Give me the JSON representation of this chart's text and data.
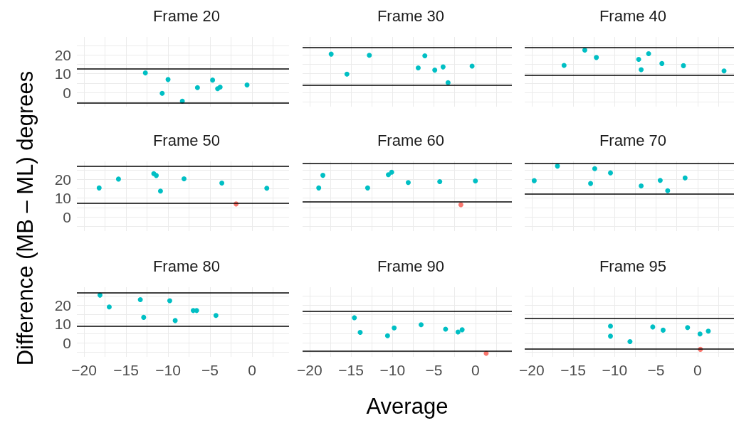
{
  "chart_data": [
    {
      "type": "scatter",
      "title": "Frame 20",
      "xlim": [
        -20.85,
        4.4
      ],
      "ylim": [
        -7.5,
        29.5
      ],
      "xticks": [
        -20,
        {
          "value": -17.5,
          "label": null
        },
        -15,
        {
          "value": -12.5,
          "label": null
        },
        -10,
        {
          "value": -7.5,
          "label": null
        },
        -5,
        {
          "value": -2.5,
          "label": null
        },
        0,
        {
          "value": 2.5,
          "label": null
        }
      ],
      "yticks": [
        {
          "value": -5,
          "label": null
        },
        0,
        {
          "value": 5,
          "label": null
        },
        10,
        {
          "value": 15,
          "label": null
        },
        20,
        {
          "value": 25,
          "label": null
        }
      ],
      "grid": true,
      "marker": "circle",
      "tick_labels": "y",
      "series": [
        {
          "color": "#00bfc4",
          "x": [
            -12.7,
            -10.0,
            -10.7,
            -8.3,
            -6.5,
            -4.7,
            -4.1,
            -3.8,
            -0.6
          ],
          "values": [
            10.4,
            6.9,
            -0.4,
            -4.6,
            2.6,
            6.6,
            2.0,
            2.9,
            4.0
          ]
        }
      ],
      "ref_lines": [
        {
          "axis": "y",
          "value": 12.75,
          "color": "#000000"
        },
        {
          "axis": "y",
          "value": -5.6,
          "color": "#000000"
        }
      ]
    },
    {
      "type": "scatter",
      "title": "Frame 30",
      "xlim": [
        -20.85,
        4.4
      ],
      "ylim": [
        -7.5,
        29.5
      ],
      "xticks": [
        -20,
        {
          "value": -17.5,
          "label": null
        },
        -15,
        {
          "value": -12.5,
          "label": null
        },
        -10,
        {
          "value": -7.5,
          "label": null
        },
        -5,
        {
          "value": -2.5,
          "label": null
        },
        0,
        {
          "value": 2.5,
          "label": null
        }
      ],
      "yticks": [
        {
          "value": -5,
          "label": null
        },
        0,
        {
          "value": 5,
          "label": null
        },
        10,
        {
          "value": 15,
          "label": null
        },
        20,
        {
          "value": 25,
          "label": null
        }
      ],
      "grid": true,
      "marker": "circle",
      "tick_labels": false,
      "series": [
        {
          "color": "#00bfc4",
          "x": [
            -17.4,
            -15.5,
            -12.8,
            -6.9,
            -6.1,
            -4.9,
            -3.9,
            -3.3,
            -0.4
          ],
          "values": [
            20.4,
            9.75,
            19.75,
            13.1,
            19.5,
            11.9,
            13.6,
            5.25,
            14.0
          ]
        }
      ],
      "ref_lines": [
        {
          "axis": "y",
          "value": 24.0,
          "color": "#000000"
        },
        {
          "axis": "y",
          "value": 3.9,
          "color": "#000000"
        }
      ]
    },
    {
      "type": "scatter",
      "title": "Frame 40",
      "xlim": [
        -20.85,
        4.4
      ],
      "ylim": [
        -7.5,
        29.5
      ],
      "xticks": [
        -20,
        {
          "value": -17.5,
          "label": null
        },
        -15,
        {
          "value": -12.5,
          "label": null
        },
        -10,
        {
          "value": -7.5,
          "label": null
        },
        -5,
        {
          "value": -2.5,
          "label": null
        },
        0,
        {
          "value": 2.5,
          "label": null
        }
      ],
      "yticks": [
        {
          "value": -5,
          "label": null
        },
        0,
        {
          "value": 5,
          "label": null
        },
        10,
        {
          "value": 15,
          "label": null
        },
        20,
        {
          "value": 25,
          "label": null
        }
      ],
      "grid": true,
      "marker": "circle",
      "tick_labels": false,
      "series": [
        {
          "color": "#00bfc4",
          "x": [
            -16.1,
            -13.6,
            -12.2,
            -7.1,
            -5.9,
            -6.8,
            -4.3,
            -1.7,
            3.2
          ],
          "values": [
            14.4,
            22.5,
            18.6,
            17.6,
            20.6,
            12.1,
            15.4,
            14.25,
            11.5
          ]
        }
      ],
      "ref_lines": [
        {
          "axis": "y",
          "value": 23.9,
          "color": "#000000"
        },
        {
          "axis": "y",
          "value": 9.25,
          "color": "#000000"
        }
      ]
    },
    {
      "type": "scatter",
      "title": "Frame 50",
      "ylabel": "Difference (MB – ML) degrees",
      "xlim": [
        -20.85,
        4.4
      ],
      "ylim": [
        -7.5,
        29.5
      ],
      "xticks": [
        -20,
        {
          "value": -17.5,
          "label": null
        },
        -15,
        {
          "value": -12.5,
          "label": null
        },
        -10,
        {
          "value": -7.5,
          "label": null
        },
        -5,
        {
          "value": -2.5,
          "label": null
        },
        0,
        {
          "value": 2.5,
          "label": null
        }
      ],
      "yticks": [
        {
          "value": -5,
          "label": null
        },
        0,
        {
          "value": 5,
          "label": null
        },
        10,
        {
          "value": 15,
          "label": null
        },
        20,
        {
          "value": 25,
          "label": null
        }
      ],
      "grid": true,
      "marker": "circle",
      "tick_labels": "y",
      "series": [
        {
          "color": "#00bfc4",
          "x": [
            -18.2,
            -15.9,
            -11.7,
            -11.4,
            -10.9,
            -8.1,
            -3.6,
            1.75
          ],
          "values": [
            15.4,
            20.1,
            23.0,
            22.0,
            13.75,
            20.25,
            18.0,
            15.25
          ]
        },
        {
          "color": "#f8766d",
          "x": [
            -1.9
          ],
          "values": [
            6.9
          ]
        }
      ],
      "ref_lines": [
        {
          "axis": "y",
          "value": 27.1,
          "color": "#000000"
        },
        {
          "axis": "y",
          "value": 7.4,
          "color": "#000000"
        }
      ]
    },
    {
      "type": "scatter",
      "title": "Frame 60",
      "xlim": [
        -20.85,
        4.4
      ],
      "ylim": [
        -7.5,
        29.5
      ],
      "xticks": [
        -20,
        {
          "value": -17.5,
          "label": null
        },
        -15,
        {
          "value": -12.5,
          "label": null
        },
        -10,
        {
          "value": -7.5,
          "label": null
        },
        -5,
        {
          "value": -2.5,
          "label": null
        },
        0,
        {
          "value": 2.5,
          "label": null
        }
      ],
      "yticks": [
        {
          "value": -5,
          "label": null
        },
        0,
        {
          "value": 5,
          "label": null
        },
        10,
        {
          "value": 15,
          "label": null
        },
        20,
        {
          "value": 25,
          "label": null
        }
      ],
      "grid": true,
      "marker": "circle",
      "tick_labels": false,
      "series": [
        {
          "color": "#00bfc4",
          "x": [
            -18.9,
            -18.4,
            -13.0,
            -10.5,
            -10.1,
            -8.1,
            -4.3,
            0.0
          ],
          "values": [
            15.4,
            22.1,
            15.4,
            22.4,
            23.75,
            18.25,
            18.75,
            19.1
          ]
        },
        {
          "color": "#f8766d",
          "x": [
            -1.75
          ],
          "values": [
            6.5
          ]
        }
      ],
      "ref_lines": [
        {
          "axis": "y",
          "value": 28.6,
          "color": "#000000"
        },
        {
          "axis": "y",
          "value": 7.9,
          "color": "#000000"
        }
      ]
    },
    {
      "type": "scatter",
      "title": "Frame 70",
      "xlim": [
        -20.85,
        4.4
      ],
      "ylim": [
        -7.5,
        29.5
      ],
      "xticks": [
        -20,
        {
          "value": -17.5,
          "label": null
        },
        -15,
        {
          "value": -12.5,
          "label": null
        },
        -10,
        {
          "value": -7.5,
          "label": null
        },
        -5,
        {
          "value": -2.5,
          "label": null
        },
        0,
        {
          "value": 2.5,
          "label": null
        }
      ],
      "yticks": [
        {
          "value": -5,
          "label": null
        },
        0,
        {
          "value": 5,
          "label": null
        },
        10,
        {
          "value": 15,
          "label": null
        },
        20,
        {
          "value": 25,
          "label": null
        }
      ],
      "grid": true,
      "marker": "circle",
      "tick_labels": false,
      "series": [
        {
          "color": "#00bfc4",
          "x": [
            -19.7,
            -16.9,
            -12.4,
            -12.9,
            -10.5,
            -6.8,
            -4.5,
            -3.6,
            -1.5
          ],
          "values": [
            19.25,
            27.0,
            25.6,
            17.75,
            23.4,
            16.5,
            19.4,
            13.9,
            20.75
          ]
        }
      ],
      "ref_lines": [
        {
          "axis": "y",
          "value": 28.5,
          "color": "#000000"
        },
        {
          "axis": "y",
          "value": 12.1,
          "color": "#000000"
        }
      ]
    },
    {
      "type": "scatter",
      "title": "Frame 80",
      "xlim": [
        -20.85,
        4.4
      ],
      "ylim": [
        -7.5,
        29.5
      ],
      "xticks": [
        -20,
        {
          "value": -17.5,
          "label": null
        },
        -15,
        {
          "value": -12.5,
          "label": null
        },
        -10,
        {
          "value": -7.5,
          "label": null
        },
        -5,
        {
          "value": -2.5,
          "label": null
        },
        0,
        {
          "value": 2.5,
          "label": null
        }
      ],
      "yticks": [
        {
          "value": -5,
          "label": null
        },
        0,
        {
          "value": 5,
          "label": null
        },
        10,
        {
          "value": 15,
          "label": null
        },
        20,
        {
          "value": 25,
          "label": null
        }
      ],
      "grid": true,
      "marker": "circle",
      "series": [
        {
          "color": "#00bfc4",
          "x": [
            -18.1,
            -17.0,
            -13.3,
            -12.9,
            -9.8,
            -9.15,
            -7.0,
            -6.6,
            -4.3
          ],
          "values": [
            25.3,
            19.0,
            22.9,
            13.5,
            22.3,
            11.8,
            17.1,
            17.1,
            14.5
          ]
        }
      ],
      "ref_lines": [
        {
          "axis": "y",
          "value": 26.7,
          "color": "#000000"
        },
        {
          "axis": "y",
          "value": 8.9,
          "color": "#000000"
        }
      ]
    },
    {
      "type": "scatter",
      "title": "Frame 90",
      "xlabel": "Average",
      "xlim": [
        -20.85,
        4.4
      ],
      "ylim": [
        -7.5,
        29.5
      ],
      "xticks": [
        -20,
        {
          "value": -17.5,
          "label": null
        },
        -15,
        {
          "value": -12.5,
          "label": null
        },
        -10,
        {
          "value": -7.5,
          "label": null
        },
        -5,
        {
          "value": -2.5,
          "label": null
        },
        0,
        {
          "value": 2.5,
          "label": null
        }
      ],
      "yticks": [
        {
          "value": -5,
          "label": null
        },
        0,
        {
          "value": 5,
          "label": null
        },
        10,
        {
          "value": 15,
          "label": null
        },
        20,
        {
          "value": 25,
          "label": null
        }
      ],
      "grid": true,
      "marker": "circle",
      "tick_labels": "x",
      "series": [
        {
          "color": "#00bfc4",
          "x": [
            -14.6,
            -13.9,
            -10.6,
            -9.8,
            -6.55,
            -3.6,
            -2.1,
            -1.6
          ],
          "values": [
            13.3,
            5.5,
            3.75,
            7.9,
            9.6,
            7.2,
            5.7,
            6.9
          ]
        },
        {
          "color": "#f8766d",
          "x": [
            1.3
          ],
          "values": [
            -5.6
          ]
        }
      ],
      "ref_lines": [
        {
          "axis": "y",
          "value": 16.7,
          "color": "#000000"
        },
        {
          "axis": "y",
          "value": -4.5,
          "color": "#000000"
        }
      ]
    },
    {
      "type": "scatter",
      "title": "Frame 95",
      "xlim": [
        -20.85,
        4.4
      ],
      "ylim": [
        -7.5,
        29.5
      ],
      "xticks": [
        -20,
        {
          "value": -17.5,
          "label": null
        },
        -15,
        {
          "value": -12.5,
          "label": null
        },
        -10,
        {
          "value": -7.5,
          "label": null
        },
        -5,
        {
          "value": -2.5,
          "label": null
        },
        0,
        {
          "value": 2.5,
          "label": null
        }
      ],
      "yticks": [
        {
          "value": -5,
          "label": null
        },
        0,
        {
          "value": 5,
          "label": null
        },
        10,
        {
          "value": 15,
          "label": null
        },
        20,
        {
          "value": 25,
          "label": null
        }
      ],
      "grid": true,
      "marker": "circle",
      "tick_labels": "x",
      "series": [
        {
          "color": "#00bfc4",
          "x": [
            -10.5,
            -10.5,
            -8.15,
            -5.4,
            -4.15,
            -1.2,
            0.3,
            1.3
          ],
          "values": [
            8.8,
            3.5,
            0.6,
            8.4,
            6.7,
            8.05,
            4.65,
            6.2
          ]
        },
        {
          "color": "#f8766d",
          "x": [
            0.35
          ],
          "values": [
            -3.5
          ]
        }
      ],
      "ref_lines": [
        {
          "axis": "y",
          "value": 12.95,
          "color": "#000000"
        },
        {
          "axis": "y",
          "value": -3.25,
          "color": "#000000"
        }
      ]
    }
  ]
}
